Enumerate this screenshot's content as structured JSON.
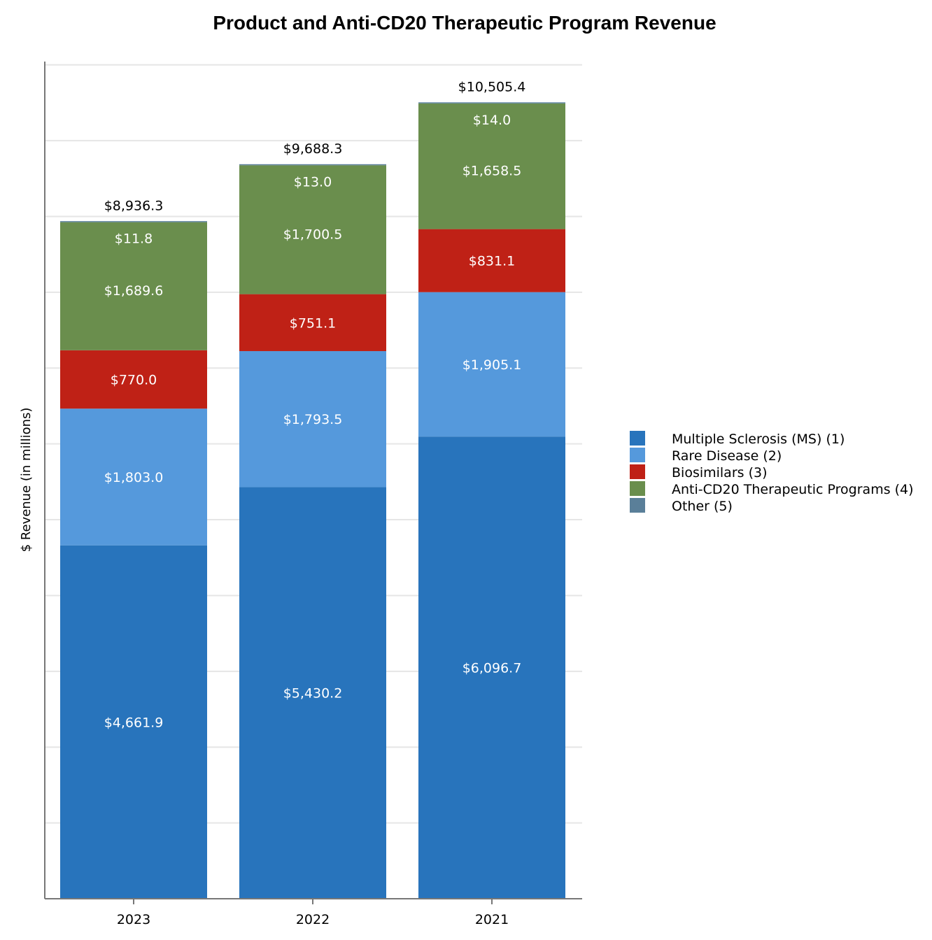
{
  "chart_data": {
    "type": "bar",
    "stacked": true,
    "title": "Product and Anti-CD20 Therapeutic Program Revenue",
    "xlabel": "",
    "ylabel": "$ Revenue (in millions)",
    "ylim": [
      0,
      11000
    ],
    "grid": true,
    "legend_position": "right",
    "categories": [
      "2023",
      "2022",
      "2021"
    ],
    "series": [
      {
        "name": "Multiple Sclerosis (MS) (1)",
        "color": "#2874bc",
        "values": [
          4661.9,
          5430.2,
          6096.7
        ],
        "labels": [
          "$4,661.9",
          "$5,430.2",
          "$6,096.7"
        ]
      },
      {
        "name": "Rare Disease (2)",
        "color": "#5599dc",
        "values": [
          1803.0,
          1793.5,
          1905.1
        ],
        "labels": [
          "$1,803.0",
          "$1,793.5",
          "$1,905.1"
        ]
      },
      {
        "name": "Biosimilars (3)",
        "color": "#bf2116",
        "values": [
          770.0,
          751.1,
          831.1
        ],
        "labels": [
          "$770.0",
          "$751.1",
          "$831.1"
        ]
      },
      {
        "name": "Anti-CD20 Therapeutic Programs (4)",
        "color": "#6a8e4d",
        "values": [
          1689.6,
          1700.5,
          1658.5
        ],
        "labels": [
          "$1,689.6",
          "$1,700.5",
          "$1,658.5"
        ]
      },
      {
        "name": "Other (5)",
        "color": "#5a7f99",
        "values": [
          11.8,
          13.0,
          14.0
        ],
        "labels": [
          "$11.8",
          "$13.0",
          "$14.0"
        ]
      }
    ],
    "totals": [
      8936.3,
      9688.3,
      10505.4
    ],
    "total_labels": [
      "$8,936.3",
      "$9,688.3",
      "$10,505.4"
    ],
    "colors": {
      "axis": "#777777",
      "grid": "#e6e6e6"
    }
  }
}
